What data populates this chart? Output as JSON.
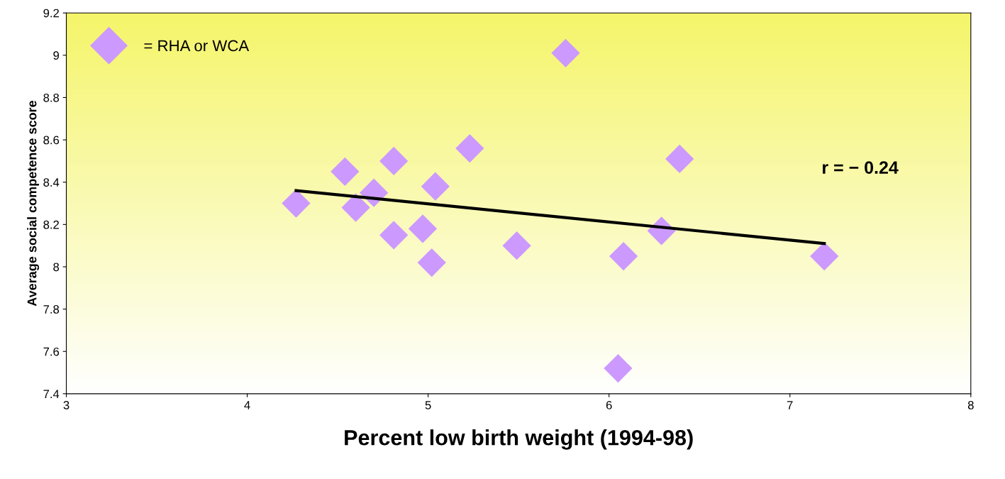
{
  "chart_data": {
    "type": "scatter",
    "xlabel": "Percent low birth weight (1994-98)",
    "ylabel": "Average social competence score",
    "annotations": [
      "r = − 0.24"
    ],
    "series": [
      {
        "name": "= RHA or WCA",
        "color": "#cc99ff",
        "marker": "diamond",
        "x": [
          4.27,
          4.54,
          4.6,
          4.7,
          4.81,
          4.81,
          4.97,
          5.02,
          5.04,
          5.23,
          5.49,
          5.76,
          6.08,
          6.05,
          6.29,
          6.39,
          7.19
        ],
        "values": [
          8.3,
          8.45,
          8.28,
          8.35,
          8.5,
          8.15,
          8.18,
          8.02,
          8.38,
          8.56,
          8.1,
          9.01,
          8.05,
          7.52,
          8.17,
          8.51,
          8.05
        ]
      },
      {
        "color": "#000000",
        "type": "line",
        "marker": "none",
        "line_style": "solid",
        "x": [
          4.27,
          7.19
        ],
        "values": [
          8.36,
          8.11
        ]
      }
    ],
    "xlim": [
      3,
      8
    ],
    "xticks": [
      3,
      4,
      5,
      6,
      7,
      8
    ],
    "ylim": [
      7.4,
      9.2
    ],
    "yticks": [
      7.4,
      7.6,
      7.8,
      8,
      8.2,
      8.4,
      8.6,
      8.8,
      9,
      9.2
    ],
    "grid": false,
    "legend": "top left"
  }
}
